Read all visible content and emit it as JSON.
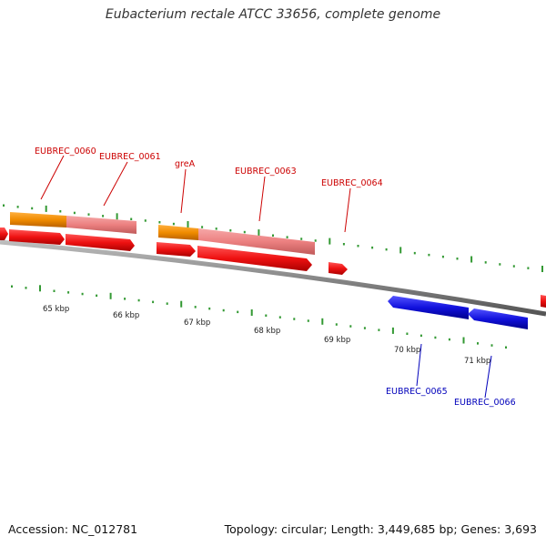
{
  "title": "Eubacterium rectale ATCC 33656, complete genome",
  "footer": {
    "accession": "Accession: NC_012781",
    "stats": "Topology: circular; Length: 3,449,685 bp; Genes: 3,693"
  },
  "colors": {
    "forward_gene_label": "#cc0000",
    "reverse_gene_label": "#0000bb",
    "cds_forward": "#ee1111",
    "cds_reverse": "#1111dd",
    "gene_feature": "#f09010",
    "gene_feature_light": "#ee8888",
    "tick": "#339933",
    "backbone": "#8a8a8a"
  },
  "scale_labels": [
    "65 kbp",
    "66 kbp",
    "67 kbp",
    "68 kbp",
    "69 kbp",
    "70 kbp",
    "71 kbp"
  ],
  "gene_labels": [
    {
      "text": "EUBREC_0060",
      "strand": "forward"
    },
    {
      "text": "EUBREC_0061",
      "strand": "forward"
    },
    {
      "text": "greA",
      "strand": "forward"
    },
    {
      "text": "EUBREC_0063",
      "strand": "forward"
    },
    {
      "text": "EUBREC_0064",
      "strand": "forward"
    },
    {
      "text": "EUBREC_0065",
      "strand": "reverse"
    },
    {
      "text": "EUBREC_0066",
      "strand": "reverse"
    }
  ]
}
